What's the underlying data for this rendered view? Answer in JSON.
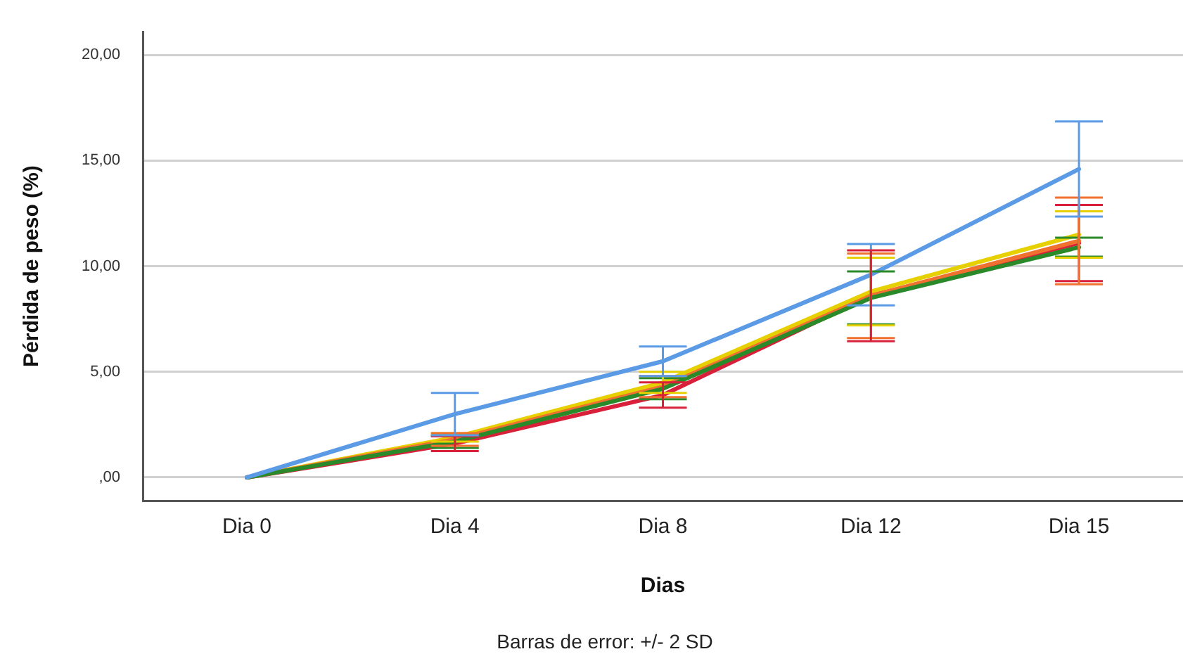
{
  "chart_data": {
    "type": "line",
    "xlabel": "Dias",
    "ylabel": "Pérdida de peso (%)",
    "annotations": [
      "Barras de error: +/- 2 SD"
    ],
    "categories": [
      "Dia 0",
      "Dia 4",
      "Dia 8",
      "Dia 12",
      "Dia 15"
    ],
    "series": [
      {
        "color": "#5b9be6",
        "values": [
          0,
          3.0,
          5.5,
          9.6,
          14.6
        ],
        "errors": [
          null,
          1.0,
          0.7,
          1.45,
          2.25
        ]
      },
      {
        "color": "#2a8a2a",
        "values": [
          0,
          1.7,
          4.2,
          8.5,
          10.9
        ],
        "errors": [
          null,
          0.3,
          0.5,
          1.25,
          0.45
        ]
      },
      {
        "color": "#f07030",
        "values": [
          0,
          1.8,
          4.3,
          8.6,
          11.2
        ],
        "errors": [
          null,
          0.3,
          0.5,
          2.0,
          2.05
        ]
      },
      {
        "color": "#d8203a",
        "values": [
          0,
          1.6,
          3.9,
          8.6,
          11.1
        ],
        "errors": [
          null,
          0.35,
          0.6,
          2.15,
          1.8
        ]
      },
      {
        "color": "#e6d000",
        "values": [
          0,
          1.9,
          4.5,
          8.8,
          11.5
        ],
        "errors": [
          null,
          0.2,
          0.5,
          1.6,
          1.1
        ]
      }
    ],
    "ylim": [
      -1.1,
      21.1
    ],
    "yticks": [
      {
        "value": 0,
        "label": ",00"
      },
      {
        "value": 5,
        "label": "5,00"
      },
      {
        "value": 10,
        "label": "10,00"
      },
      {
        "value": 15,
        "label": "15,00"
      },
      {
        "value": 20,
        "label": "20,00"
      }
    ],
    "grid": "y",
    "legend": false,
    "marker": "none",
    "line_style": "solid"
  }
}
